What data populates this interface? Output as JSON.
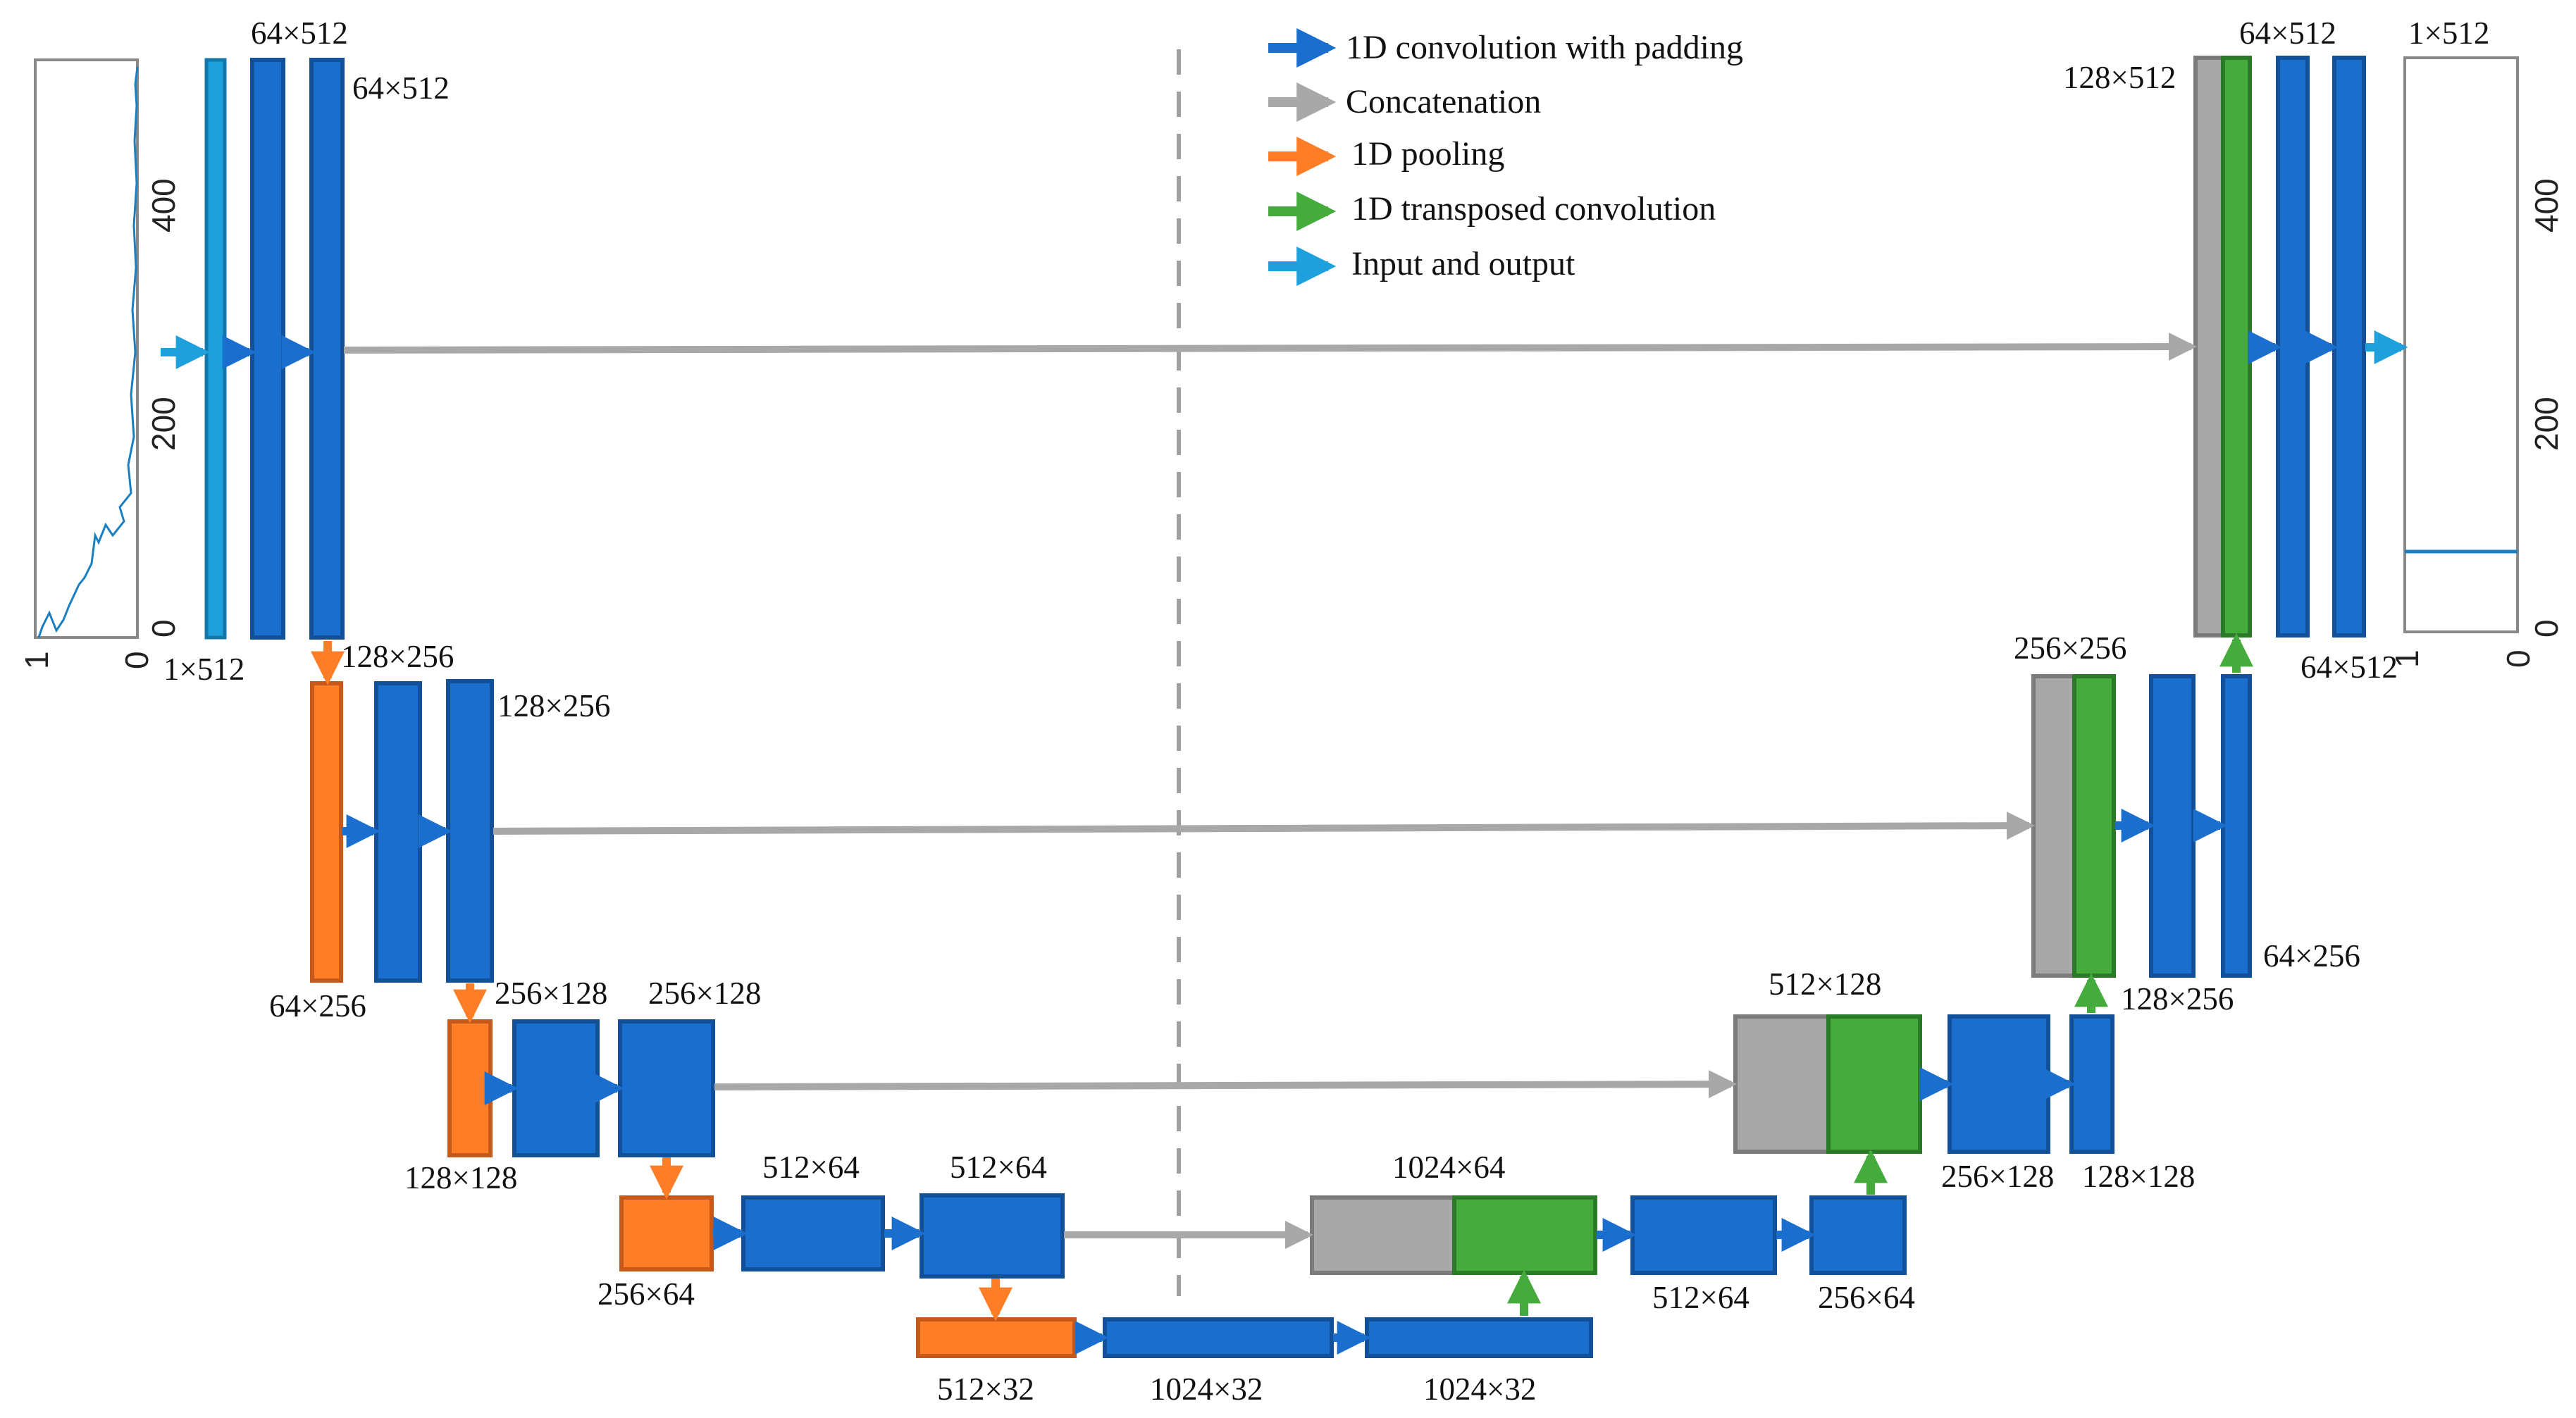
{
  "legend": {
    "conv": "1D convolution with padding",
    "concat": "Concatenation",
    "pool": "1D pooling",
    "tconv": "1D transposed convolution",
    "io": "Input and output"
  },
  "colors": {
    "conv": "#1a6fce",
    "conv_stroke": "#13509a",
    "concat": "#a8a8a8",
    "concat_stroke": "#7b7b7b",
    "pool": "#fe7e28",
    "pool_stroke": "#c7581a",
    "tconv": "#44ab3c",
    "tconv_stroke": "#2a7a28",
    "io": "#1ea0dc",
    "io_stroke": "#1577a8",
    "skip_arrow": "#a8a8a8",
    "divider": "#a0a0a0"
  },
  "input_plot": {
    "ticks": [
      "0",
      "200",
      "400"
    ],
    "xticks": [
      "1",
      "0"
    ]
  },
  "output_plot": {
    "ticks": [
      "0",
      "200",
      "400"
    ],
    "xticks": [
      "1",
      "0"
    ]
  },
  "labels": {
    "in_1x512": "1×512",
    "enc1_64x512_a": "64×512",
    "enc1_64x512_b": "64×512",
    "enc2_128x256_a": "128×256",
    "enc2_128x256_b": "128×256",
    "pool1_64x256": "64×256",
    "enc3_256x128_a": "256×128",
    "enc3_256x128_b": "256×128",
    "pool2_128x128": "128×128",
    "enc4_512x64_a": "512×64",
    "enc4_512x64_b": "512×64",
    "pool3_256x64": "256×64",
    "pool4_512x32": "512×32",
    "bott_1024x32_a": "1024×32",
    "bott_1024x32_b": "1024×32",
    "dec4_1024x64": "1024×64",
    "dec4_512x64": "512×64",
    "dec4_256x64": "256×64",
    "dec3_512x128": "512×128",
    "dec3_256x128": "256×128",
    "dec3_128x128": "128×128",
    "dec2_256x256": "256×256",
    "dec2_128x256": "128×256",
    "dec2_64x256": "64×256",
    "dec1_128x512": "128×512",
    "dec1_64x512_a": "64×512",
    "dec1_64x512_b": "64×512",
    "out_1x512": "1×512"
  }
}
